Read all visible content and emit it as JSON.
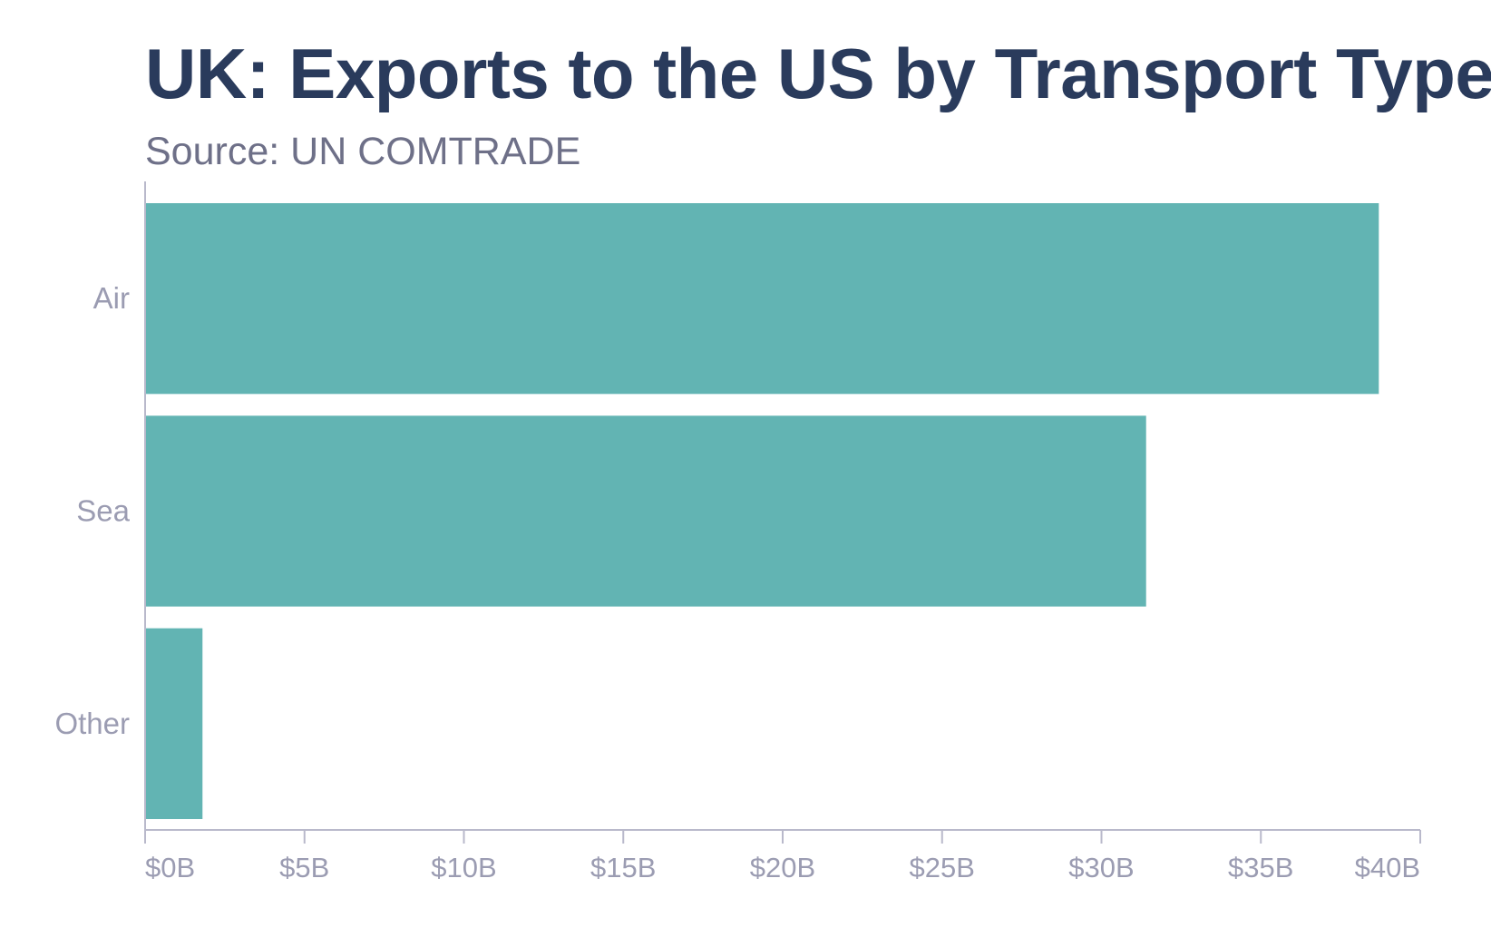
{
  "chart_data": {
    "type": "bar",
    "orientation": "horizontal",
    "title": "UK: Exports to the US by Transport Type",
    "subtitle": "Source: UN COMTRADE",
    "categories": [
      "Air",
      "Sea",
      "Other"
    ],
    "values": [
      38.7,
      31.4,
      1.8
    ],
    "unit": "billion USD",
    "xlim": [
      0,
      40
    ],
    "xticks": [
      0,
      5,
      10,
      15,
      20,
      25,
      30,
      35,
      40
    ],
    "xtick_labels": [
      "$0B",
      "$5B",
      "$10B",
      "$15B",
      "$20B",
      "$25B",
      "$30B",
      "$35B",
      "$40B"
    ],
    "xlabel": "",
    "ylabel": "",
    "grid": false,
    "colors": {
      "bar": "#62b4b3",
      "axis": "#b9b9cb",
      "title": "#2a3b5c",
      "subtitle": "#6e7088",
      "label": "#9b9cb2"
    }
  }
}
